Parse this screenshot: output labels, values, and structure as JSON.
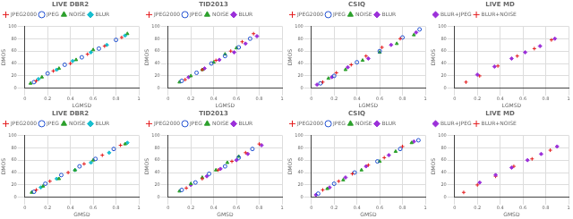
{
  "chart_data": [
    {
      "type": "scatter",
      "title": "LIVE DBR2",
      "x_label": "LGMSD",
      "y_label": "DMOS",
      "xlim": [
        0,
        1
      ],
      "ylim": [
        0,
        100
      ],
      "xticks": [
        0,
        0.2,
        0.4,
        0.6,
        0.8,
        1
      ],
      "yticks": [
        0,
        20,
        40,
        60,
        80,
        100
      ],
      "grid": true,
      "legend": "upper left",
      "series": [
        {
          "name": "JPEG2000",
          "color": "#e41a1c",
          "marker": "cross",
          "x": [
            0.1,
            0.25,
            0.4,
            0.55,
            0.7,
            0.85
          ],
          "values": [
            12,
            28,
            40,
            55,
            68,
            82
          ]
        },
        {
          "name": "JPEG",
          "color": "#1f4fd1",
          "marker": "circle",
          "x": [
            0.08,
            0.2,
            0.35,
            0.5,
            0.65,
            0.8
          ],
          "values": [
            10,
            24,
            38,
            50,
            64,
            78
          ]
        },
        {
          "name": "NOISE",
          "color": "#2ca02c",
          "marker": "triangle",
          "x": [
            0.05,
            0.15,
            0.3,
            0.45,
            0.6,
            0.9
          ],
          "values": [
            8,
            18,
            32,
            46,
            62,
            88
          ]
        },
        {
          "name": "BLUR",
          "color": "#17becf",
          "marker": "rectRot",
          "x": [
            0.12,
            0.28,
            0.42,
            0.58,
            0.72,
            0.88
          ],
          "values": [
            15,
            30,
            44,
            58,
            70,
            85
          ]
        }
      ]
    },
    {
      "type": "scatter",
      "title": "TID2013",
      "x_label": "LGMSD",
      "y_label": "DMOS",
      "xlim": [
        0,
        1
      ],
      "ylim": [
        0,
        100
      ],
      "xticks": [
        0,
        0.2,
        0.4,
        0.6,
        0.8,
        1
      ],
      "yticks": [
        0,
        20,
        40,
        60,
        80,
        100
      ],
      "grid": true,
      "legend": "upper left",
      "series": [
        {
          "name": "JPEG2000",
          "color": "#e41a1c",
          "marker": "cross",
          "x": [
            0.15,
            0.3,
            0.42,
            0.55,
            0.65,
            0.75
          ],
          "values": [
            14,
            30,
            45,
            60,
            75,
            88
          ]
        },
        {
          "name": "JPEG",
          "color": "#1f4fd1",
          "marker": "circle",
          "x": [
            0.12,
            0.25,
            0.38,
            0.5,
            0.62,
            0.72
          ],
          "values": [
            12,
            25,
            40,
            52,
            66,
            80
          ]
        },
        {
          "name": "NOISE",
          "color": "#2ca02c",
          "marker": "triangle",
          "x": [
            0.1,
            0.2,
            0.3,
            0.4,
            0.5,
            0.6
          ],
          "values": [
            10,
            20,
            30,
            42,
            55,
            65
          ]
        },
        {
          "name": "BLUR",
          "color": "#9b30d9",
          "marker": "rectRot",
          "x": [
            0.18,
            0.32,
            0.45,
            0.58,
            0.68,
            0.78
          ],
          "values": [
            18,
            32,
            46,
            58,
            72,
            84
          ]
        }
      ]
    },
    {
      "type": "scatter",
      "title": "CSIQ",
      "x_label": "LGMSD",
      "y_label": "DMOS",
      "xlim": [
        0,
        1
      ],
      "ylim": [
        0,
        100
      ],
      "xticks": [
        0,
        0.2,
        0.4,
        0.6,
        0.8,
        1
      ],
      "yticks": [
        0,
        20,
        40,
        60,
        80,
        100
      ],
      "grid": true,
      "legend": "upper left",
      "series": [
        {
          "name": "JPEG2000",
          "color": "#e41a1c",
          "marker": "cross",
          "x": [
            0.1,
            0.22,
            0.35,
            0.48,
            0.62,
            0.78
          ],
          "values": [
            10,
            25,
            38,
            52,
            66,
            80
          ]
        },
        {
          "name": "JPEG",
          "color": "#1f4fd1",
          "marker": "circle",
          "x": [
            0.08,
            0.2,
            0.4,
            0.6,
            0.8,
            0.95
          ],
          "values": [
            8,
            20,
            42,
            60,
            82,
            95
          ]
        },
        {
          "name": "NOISE",
          "color": "#2ca02c",
          "marker": "triangle",
          "x": [
            0.15,
            0.3,
            0.45,
            0.6,
            0.75,
            0.9
          ],
          "values": [
            16,
            30,
            45,
            58,
            72,
            86
          ]
        },
        {
          "name": "BLUR",
          "color": "#9b30d9",
          "marker": "rectRot",
          "x": [
            0.05,
            0.18,
            0.32,
            0.5,
            0.7,
            0.92
          ],
          "values": [
            6,
            18,
            34,
            48,
            70,
            90
          ]
        }
      ]
    },
    {
      "type": "scatter",
      "title": "LIVE MD",
      "x_label": "LGMSD",
      "y_label": "DMOS",
      "xlim": [
        0,
        1
      ],
      "ylim": [
        0,
        100
      ],
      "xticks": [
        0,
        0.2,
        0.4,
        0.6,
        0.8,
        1
      ],
      "yticks": [
        0,
        20,
        40,
        60,
        80,
        100
      ],
      "grid": true,
      "legend": "upper left",
      "series": [
        {
          "name": "BLUR+JPEG",
          "color": "#9b30d9",
          "marker": "rectRot",
          "x": [
            0.2,
            0.35,
            0.5,
            0.62,
            0.75,
            0.88
          ],
          "values": [
            22,
            35,
            48,
            58,
            68,
            80
          ]
        },
        {
          "name": "BLUR+NOISE",
          "color": "#e41a1c",
          "marker": "cross",
          "x": [
            0.1,
            0.22,
            0.38,
            0.55,
            0.7,
            0.85
          ],
          "values": [
            10,
            20,
            36,
            52,
            64,
            78
          ]
        }
      ]
    },
    {
      "type": "scatter",
      "title": "LIVE DBR2",
      "x_label": "GMSD",
      "y_label": "DMOS",
      "xlim": [
        0,
        1
      ],
      "ylim": [
        0,
        100
      ],
      "xticks": [
        0,
        0.2,
        0.4,
        0.6,
        0.8,
        1
      ],
      "yticks": [
        0,
        20,
        40,
        60,
        80,
        100
      ],
      "grid": true,
      "legend": "upper left",
      "series": [
        {
          "name": "JPEG2000",
          "color": "#e41a1c",
          "marker": "cross",
          "x": [
            0.1,
            0.22,
            0.38,
            0.52,
            0.68,
            0.84
          ],
          "values": [
            12,
            26,
            40,
            54,
            68,
            84
          ]
        },
        {
          "name": "JPEG",
          "color": "#1f4fd1",
          "marker": "circle",
          "x": [
            0.08,
            0.18,
            0.32,
            0.48,
            0.62,
            0.78
          ],
          "values": [
            9,
            22,
            36,
            50,
            62,
            78
          ]
        },
        {
          "name": "NOISE",
          "color": "#2ca02c",
          "marker": "triangle",
          "x": [
            0.06,
            0.16,
            0.3,
            0.44,
            0.6,
            0.88
          ],
          "values": [
            8,
            18,
            30,
            44,
            60,
            86
          ]
        },
        {
          "name": "BLUR",
          "color": "#17becf",
          "marker": "rectRot",
          "x": [
            0.14,
            0.28,
            0.44,
            0.58,
            0.74,
            0.9
          ],
          "values": [
            16,
            30,
            44,
            56,
            72,
            88
          ]
        }
      ]
    },
    {
      "type": "scatter",
      "title": "TID2013",
      "x_label": "GMSD",
      "y_label": "DMOS",
      "xlim": [
        0,
        1
      ],
      "ylim": [
        0,
        100
      ],
      "xticks": [
        0,
        0.2,
        0.4,
        0.6,
        0.8,
        1
      ],
      "yticks": [
        0,
        20,
        40,
        60,
        80,
        100
      ],
      "grid": true,
      "legend": "upper left",
      "series": [
        {
          "name": "JPEG2000",
          "color": "#e41a1c",
          "marker": "cross",
          "x": [
            0.16,
            0.3,
            0.44,
            0.56,
            0.68,
            0.8
          ],
          "values": [
            15,
            30,
            44,
            58,
            72,
            86
          ]
        },
        {
          "name": "JPEG",
          "color": "#1f4fd1",
          "marker": "circle",
          "x": [
            0.12,
            0.24,
            0.36,
            0.5,
            0.62,
            0.74
          ],
          "values": [
            12,
            24,
            38,
            50,
            64,
            78
          ]
        },
        {
          "name": "NOISE",
          "color": "#2ca02c",
          "marker": "triangle",
          "x": [
            0.1,
            0.2,
            0.3,
            0.42,
            0.52,
            0.62
          ],
          "values": [
            10,
            22,
            32,
            44,
            56,
            66
          ]
        },
        {
          "name": "BLUR",
          "color": "#9b30d9",
          "marker": "rectRot",
          "x": [
            0.2,
            0.34,
            0.46,
            0.6,
            0.7,
            0.82
          ],
          "values": [
            20,
            34,
            46,
            60,
            70,
            84
          ]
        }
      ]
    },
    {
      "type": "scatter",
      "title": "CSIQ",
      "x_label": "GMSD",
      "y_label": "DMOS",
      "xlim": [
        0,
        1
      ],
      "ylim": [
        0,
        100
      ],
      "xticks": [
        0,
        0.2,
        0.4,
        0.6,
        0.8,
        1
      ],
      "yticks": [
        0,
        20,
        40,
        60,
        80,
        100
      ],
      "grid": true,
      "legend": "upper left",
      "series": [
        {
          "name": "JPEG2000",
          "color": "#e41a1c",
          "marker": "cross",
          "x": [
            0.1,
            0.24,
            0.36,
            0.5,
            0.64,
            0.8
          ],
          "values": [
            12,
            26,
            38,
            52,
            64,
            82
          ]
        },
        {
          "name": "JPEG",
          "color": "#1f4fd1",
          "marker": "circle",
          "x": [
            0.06,
            0.2,
            0.38,
            0.58,
            0.78,
            0.94
          ],
          "values": [
            6,
            22,
            40,
            58,
            78,
            92
          ]
        },
        {
          "name": "NOISE",
          "color": "#2ca02c",
          "marker": "triangle",
          "x": [
            0.14,
            0.28,
            0.44,
            0.6,
            0.74,
            0.88
          ],
          "values": [
            14,
            28,
            44,
            58,
            74,
            88
          ]
        },
        {
          "name": "BLUR",
          "color": "#9b30d9",
          "marker": "rectRot",
          "x": [
            0.04,
            0.16,
            0.3,
            0.48,
            0.68,
            0.9
          ],
          "values": [
            4,
            16,
            32,
            50,
            68,
            90
          ]
        }
      ]
    },
    {
      "type": "scatter",
      "title": "LIVE MD",
      "x_label": "GMSD",
      "y_label": "DMOS",
      "xlim": [
        0,
        1
      ],
      "ylim": [
        0,
        100
      ],
      "xticks": [
        0,
        0.2,
        0.4,
        0.6,
        0.8,
        1
      ],
      "yticks": [
        0,
        20,
        40,
        60,
        80,
        100
      ],
      "grid": true,
      "legend": "upper left",
      "series": [
        {
          "name": "BLUR+JPEG",
          "color": "#9b30d9",
          "marker": "rectRot",
          "x": [
            0.22,
            0.36,
            0.5,
            0.64,
            0.76,
            0.9
          ],
          "values": [
            24,
            36,
            48,
            60,
            70,
            82
          ]
        },
        {
          "name": "BLUR+NOISE",
          "color": "#e41a1c",
          "marker": "cross",
          "x": [
            0.08,
            0.2,
            0.36,
            0.52,
            0.68,
            0.84
          ],
          "values": [
            8,
            20,
            34,
            50,
            62,
            76
          ]
        }
      ]
    }
  ]
}
